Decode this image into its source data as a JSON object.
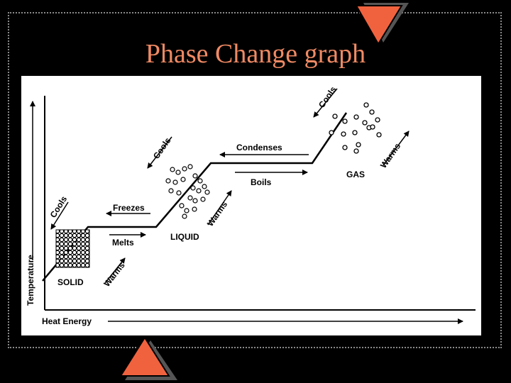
{
  "slide": {
    "title": "Phase Change graph"
  },
  "diagram": {
    "axes": {
      "y_label": "Temperature",
      "x_label": "Heat Energy"
    },
    "labels": {
      "solid": "SOLID",
      "liquid": "LIQUID",
      "gas": "GAS",
      "melts": "Melts",
      "freezes": "Freezes",
      "boils": "Boils",
      "condenses": "Condenses",
      "warms": "Warms",
      "cools": "Cools"
    }
  },
  "colors": {
    "background": "#000000",
    "title": "#f08a64",
    "accent_triangle": "#f0623e",
    "triangle_shadow": "#555555",
    "frame": "#8a8a8a"
  }
}
